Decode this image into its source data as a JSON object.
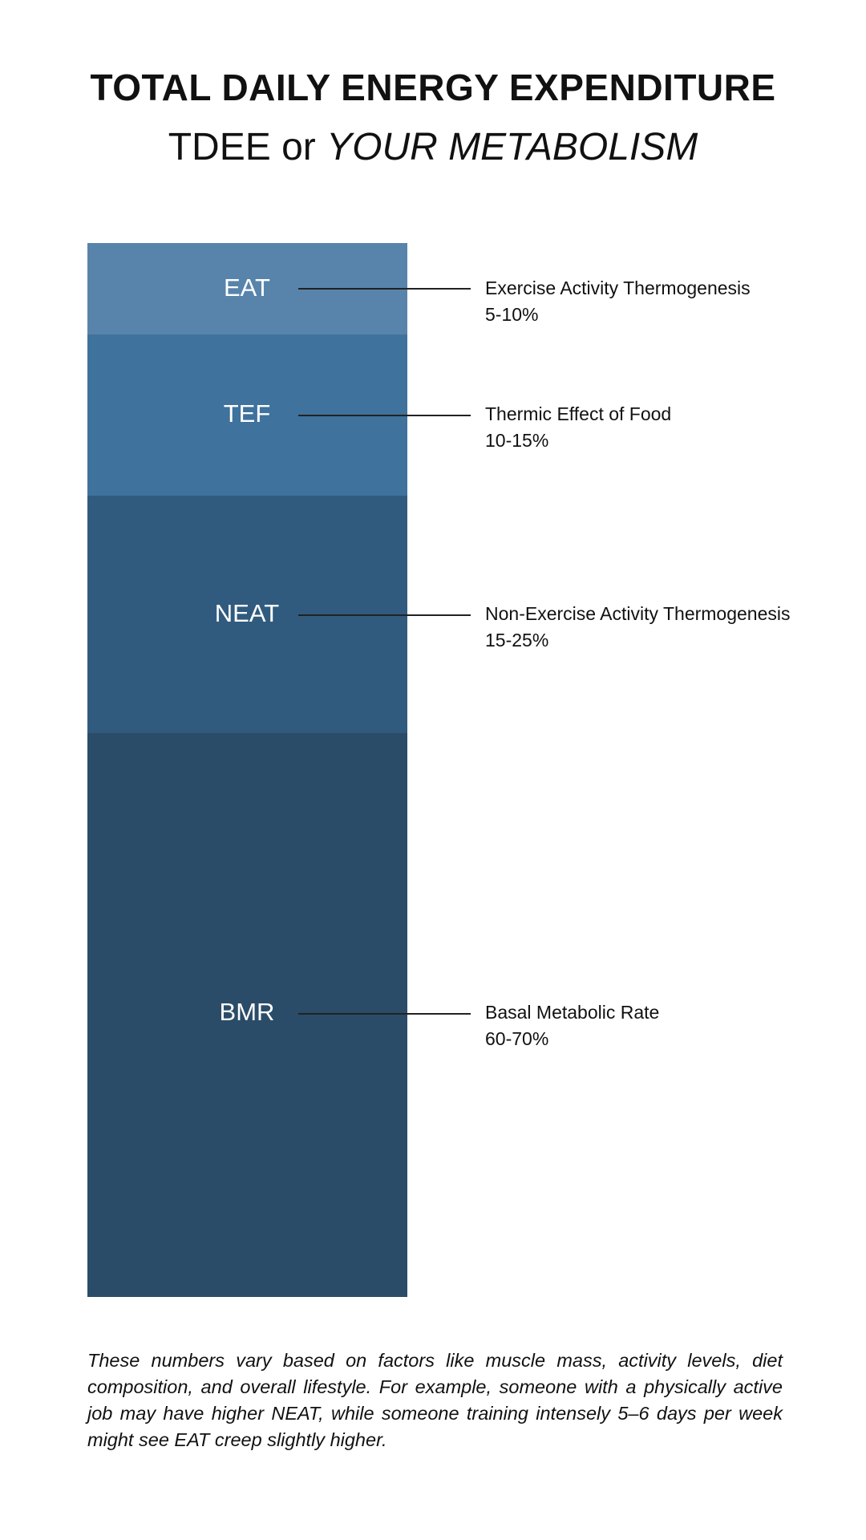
{
  "title": "TOTAL DAILY ENERGY EXPENDITURE",
  "subtitle": {
    "plain": "TDEE or ",
    "italic": "YOUR METABOLISM"
  },
  "segments": [
    {
      "abbr": "EAT",
      "name": "Exercise Activity Thermogenesis",
      "range": "5-10%",
      "color": "#5884ab"
    },
    {
      "abbr": "TEF",
      "name": "Thermic Effect of Food",
      "range": "10-15%",
      "color": "#3f729c"
    },
    {
      "abbr": "NEAT",
      "name": "Non-Exercise Activity Thermogenesis",
      "range": "15-25%",
      "color": "#305b7e"
    },
    {
      "abbr": "BMR",
      "name": "Basal Metabolic Rate",
      "range": "60-70%",
      "color": "#2a4c68"
    }
  ],
  "footnote": "These numbers vary based on factors like muscle mass, activity levels, diet composition, and overall lifestyle. For example, someone with a physically active job may have higher NEAT, while someone training intensely 5–6 days per week might see EAT creep slightly higher."
}
